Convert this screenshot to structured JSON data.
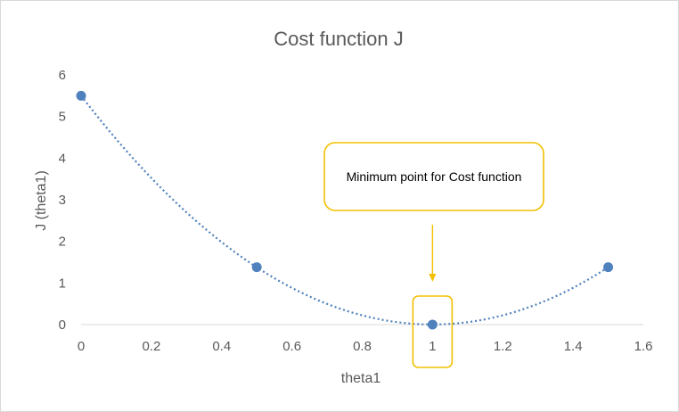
{
  "chart_data": {
    "type": "scatter",
    "title": "Cost function J",
    "xlabel": "theta1",
    "ylabel": "J (theta1)",
    "xlim": [
      0,
      1.6
    ],
    "ylim": [
      0,
      6
    ],
    "x_ticks": [
      "0",
      "0.2",
      "0.4",
      "0.6",
      "0.8",
      "1",
      "1.2",
      "1.4",
      "1.6"
    ],
    "y_ticks": [
      "0",
      "1",
      "2",
      "3",
      "4",
      "5",
      "6"
    ],
    "grid": false,
    "trendline": "dotted polynomial",
    "colors": {
      "points": "#4f81bd",
      "trendline": "#4f81bd",
      "callout": "#f2c000",
      "highlight": "#f2c000"
    },
    "series": [
      {
        "x": [
          0,
          0.5,
          1,
          1.5
        ],
        "y": [
          5.5,
          1.38,
          0,
          1.38
        ]
      }
    ],
    "annotations": [
      {
        "text": "Minimum  point for Cost function",
        "target_x": 1,
        "target_y": 0
      }
    ]
  }
}
